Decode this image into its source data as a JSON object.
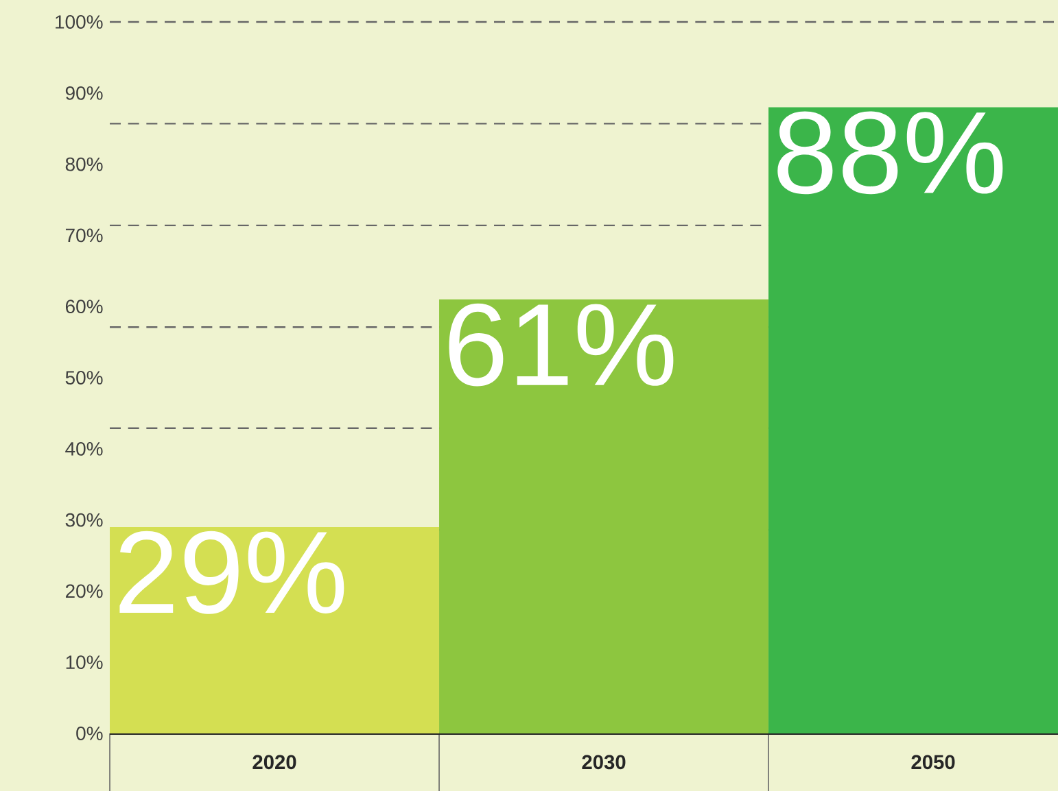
{
  "chart_data": {
    "type": "bar",
    "categories": [
      "2020",
      "2030",
      "2050"
    ],
    "values": [
      29,
      61,
      88
    ],
    "colors": [
      "#d4df52",
      "#8dc63f",
      "#3bb54a"
    ],
    "value_labels": [
      "29%",
      "61%",
      "88%"
    ],
    "ylim": [
      0,
      100
    ],
    "yticks": [
      {
        "value": 0,
        "label": "0%"
      },
      {
        "value": 10,
        "label": "10%"
      },
      {
        "value": 20,
        "label": "20%"
      },
      {
        "value": 30,
        "label": "30%"
      },
      {
        "value": 40,
        "label": "40%"
      },
      {
        "value": 50,
        "label": "50%"
      },
      {
        "value": 60,
        "label": "60%"
      },
      {
        "value": 70,
        "label": "70%"
      },
      {
        "value": 80,
        "label": "80%"
      },
      {
        "value": 90,
        "label": "90%"
      },
      {
        "value": 100,
        "label": "100%"
      }
    ],
    "ref_lines": [
      {
        "axis": "y",
        "value": 100,
        "line_style": "dashed"
      },
      {
        "axis": "y",
        "value": 85.7,
        "line_style": "dashed"
      },
      {
        "axis": "y",
        "value": 71.4,
        "line_style": "dashed"
      },
      {
        "axis": "y",
        "value": 57.1,
        "line_style": "dashed"
      },
      {
        "axis": "y",
        "value": 42.9,
        "line_style": "dashed"
      },
      {
        "axis": "y",
        "value": 28.6,
        "line_style": "dashed"
      }
    ]
  }
}
